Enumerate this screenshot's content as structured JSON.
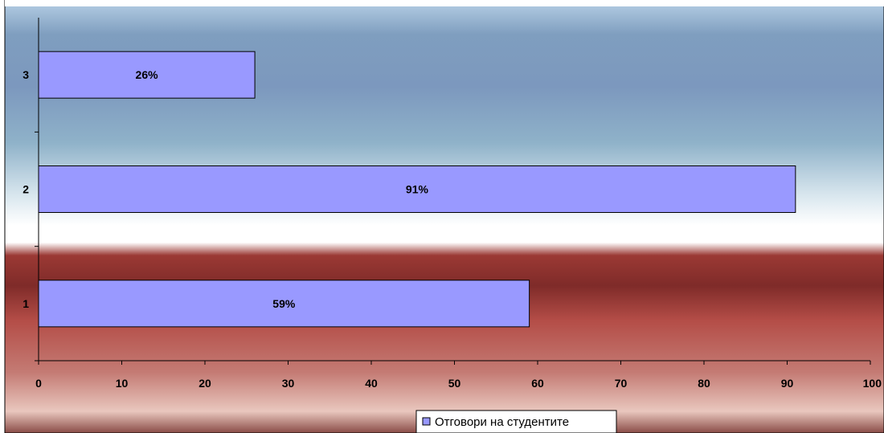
{
  "colors": {
    "bar_fill": "#9999FF",
    "bar_stroke": "#000000",
    "bg_blue": "#7F9EBF",
    "bg_white": "#FFFFFF",
    "bg_red": "#B84A45"
  },
  "chart_data": {
    "type": "bar",
    "orientation": "horizontal",
    "title": "",
    "xlabel": "",
    "ylabel": "",
    "categories": [
      "1",
      "2",
      "3"
    ],
    "series": [
      {
        "name": "Отговори на студентите",
        "values": [
          59,
          91,
          26
        ],
        "labels": [
          "59%",
          "91%",
          "26%"
        ]
      }
    ],
    "xlim": [
      0,
      100
    ],
    "x_ticks": [
      "0",
      "10",
      "20",
      "30",
      "40",
      "50",
      "60",
      "70",
      "80",
      "90",
      "100"
    ],
    "grid": false,
    "legend_position": "bottom-center"
  }
}
